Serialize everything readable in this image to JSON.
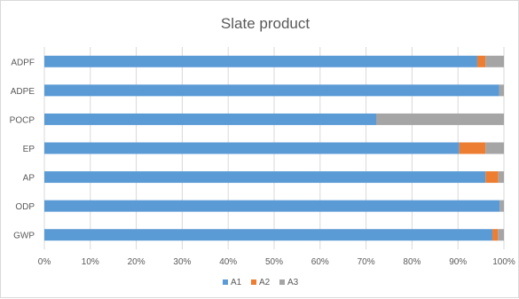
{
  "chart_data": {
    "type": "bar",
    "orientation": "horizontal",
    "stacked": "percent",
    "title": "Slate product",
    "categories": [
      "ADPF",
      "ADPE",
      "POCP",
      "EP",
      "AP",
      "ODP",
      "GWP"
    ],
    "series": [
      {
        "name": "A1",
        "color": "#5b9bd5",
        "values": [
          94.2,
          99.0,
          72.2,
          90.3,
          96.0,
          99.1,
          97.5
        ]
      },
      {
        "name": "A2",
        "color": "#ed7d31",
        "values": [
          1.8,
          0.0,
          0.0,
          5.7,
          2.8,
          0.0,
          1.2
        ]
      },
      {
        "name": "A3",
        "color": "#a5a5a5",
        "values": [
          4.0,
          1.0,
          27.8,
          4.0,
          1.2,
          0.9,
          1.3
        ]
      }
    ],
    "xlim": [
      0,
      100
    ],
    "x_ticks": [
      "0%",
      "10%",
      "20%",
      "30%",
      "40%",
      "50%",
      "60%",
      "70%",
      "80%",
      "90%",
      "100%"
    ],
    "gridlines": "vertical",
    "legend_position": "bottom"
  }
}
